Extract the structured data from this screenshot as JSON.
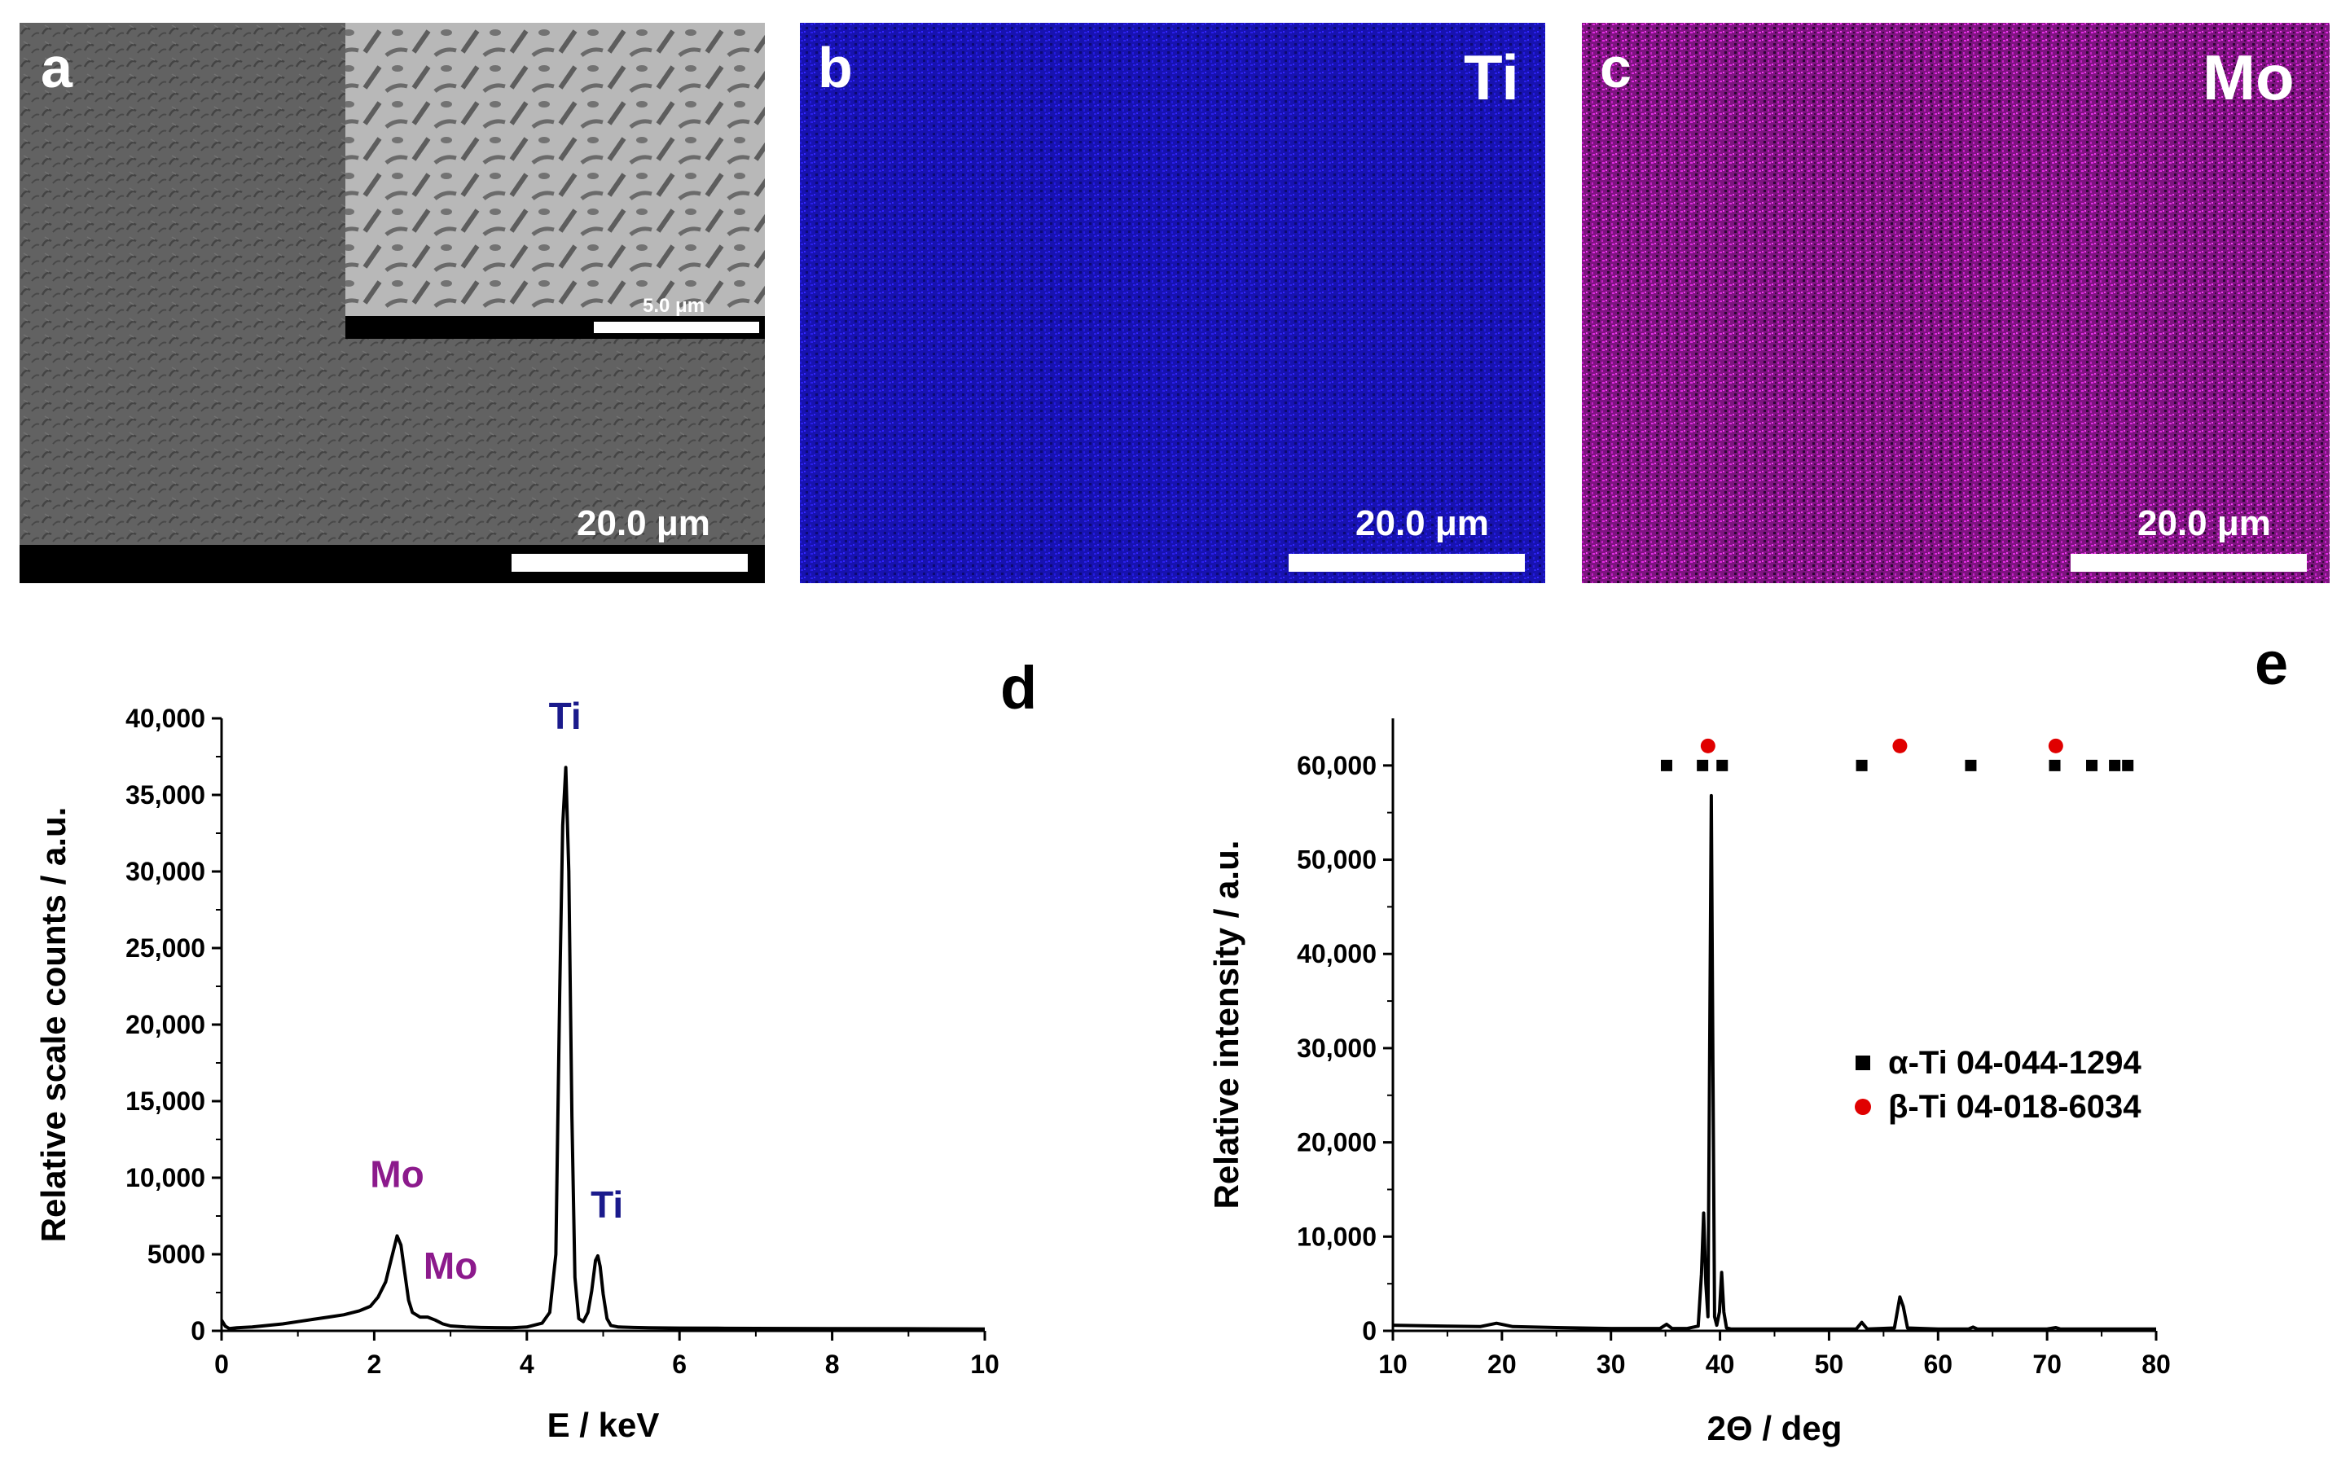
{
  "panel_a": {
    "letter": "a",
    "scale_bar_label": "20.0 μm",
    "inset_scale_bar_label": "5.0 μm"
  },
  "panel_b": {
    "letter": "b",
    "element": "Ti",
    "scale_bar_label": "20.0 μm",
    "map_color": "#1f12d6"
  },
  "panel_c": {
    "letter": "c",
    "element": "Mo",
    "scale_bar_label": "20.0 μm",
    "map_color": "#d21bd3"
  },
  "chart_data": [
    {
      "panel": "d",
      "type": "line",
      "xlabel": "E / keV",
      "ylabel": "Relative scale counts / a.u.",
      "xlim": [
        0,
        10
      ],
      "ylim": [
        0,
        40000
      ],
      "xticks": [
        0,
        2,
        4,
        6,
        8,
        10
      ],
      "yticks": [
        0,
        5000,
        10000,
        15000,
        20000,
        25000,
        30000,
        35000,
        40000
      ],
      "ytick_labels": [
        "0",
        "5000",
        "10,000",
        "15,000",
        "20,000",
        "25,000",
        "30,000",
        "35,000",
        "40,000"
      ],
      "series": [
        {
          "color": "#000000",
          "x": [
            0.0,
            0.05,
            0.1,
            0.2,
            0.4,
            0.6,
            0.8,
            1.0,
            1.2,
            1.4,
            1.6,
            1.8,
            1.95,
            2.05,
            2.15,
            2.2,
            2.25,
            2.3,
            2.35,
            2.4,
            2.45,
            2.5,
            2.6,
            2.7,
            2.8,
            2.9,
            3.0,
            3.2,
            3.4,
            3.6,
            3.8,
            4.0,
            4.2,
            4.3,
            4.38,
            4.43,
            4.47,
            4.51,
            4.55,
            4.59,
            4.63,
            4.68,
            4.74,
            4.8,
            4.85,
            4.9,
            4.93,
            4.96,
            5.0,
            5.05,
            5.1,
            5.2,
            5.4,
            5.6,
            6.0,
            6.5,
            7.0,
            8.0,
            9.0,
            10.0
          ],
          "y": [
            700,
            300,
            150,
            200,
            250,
            350,
            450,
            600,
            750,
            900,
            1050,
            1300,
            1600,
            2200,
            3200,
            4200,
            5200,
            6200,
            5600,
            3800,
            2000,
            1200,
            900,
            900,
            700,
            450,
            320,
            250,
            220,
            210,
            200,
            250,
            500,
            1200,
            5000,
            22000,
            33000,
            36800,
            30000,
            14000,
            3500,
            800,
            600,
            1200,
            2600,
            4600,
            4900,
            4200,
            2400,
            800,
            350,
            250,
            220,
            200,
            180,
            170,
            160,
            150,
            140,
            120
          ]
        }
      ],
      "annotations": [
        {
          "text": "Mo",
          "x": 2.3,
          "y": 9400,
          "color": "#8c1a8c"
        },
        {
          "text": "Mo",
          "x": 3.0,
          "y": 3400,
          "color": "#8c1a8c"
        },
        {
          "text": "Ti",
          "x": 4.5,
          "y": 39300,
          "color": "#1a1a8c"
        },
        {
          "text": "Ti",
          "x": 5.05,
          "y": 7400,
          "color": "#1a1a8c"
        }
      ]
    },
    {
      "panel": "e",
      "type": "line",
      "xlabel": "2Θ / deg",
      "ylabel": "Relative intensity / a.u.",
      "xlim": [
        10,
        80
      ],
      "ylim": [
        0,
        65000
      ],
      "xticks": [
        10,
        20,
        30,
        40,
        50,
        60,
        70,
        80
      ],
      "yticks": [
        0,
        10000,
        20000,
        30000,
        40000,
        50000,
        60000
      ],
      "ytick_labels": [
        "0",
        "10,000",
        "20,000",
        "30,000",
        "40,000",
        "50,000",
        "60,000"
      ],
      "series": [
        {
          "color": "#000000",
          "x": [
            10,
            15,
            18,
            19.5,
            21,
            25,
            30,
            34.5,
            35.1,
            35.6,
            37,
            38.0,
            38.3,
            38.5,
            38.7,
            38.9,
            39.05,
            39.2,
            39.35,
            39.5,
            39.7,
            39.95,
            40.15,
            40.35,
            40.6,
            41,
            45,
            52.5,
            53.0,
            53.5,
            56.0,
            56.5,
            56.8,
            57.2,
            60,
            62.8,
            63.2,
            63.6,
            70,
            70.8,
            71.2,
            76,
            80
          ],
          "y": [
            600,
            500,
            450,
            800,
            450,
            350,
            250,
            250,
            700,
            250,
            250,
            500,
            6000,
            12500,
            5000,
            1500,
            30000,
            56800,
            28000,
            1500,
            600,
            2000,
            6200,
            2000,
            300,
            200,
            200,
            200,
            900,
            200,
            300,
            3600,
            2600,
            300,
            200,
            200,
            400,
            200,
            200,
            350,
            200,
            200,
            200
          ]
        }
      ],
      "reference_markers": {
        "alpha_Ti": {
          "marker": "square",
          "color": "#000000",
          "positions": [
            35.1,
            38.4,
            40.2,
            53.0,
            63.0,
            70.7,
            74.1,
            76.2,
            77.4
          ]
        },
        "beta_Ti": {
          "marker": "circle",
          "color": "#e00000",
          "positions": [
            38.9,
            56.5,
            70.8
          ]
        }
      },
      "legend": {
        "placement": "right-middle",
        "entries": [
          {
            "label": "α-Ti 04-044-1294",
            "marker": "square",
            "color": "#000000"
          },
          {
            "label": "β-Ti 04-018-6034",
            "marker": "circle",
            "color": "#e00000"
          }
        ]
      }
    }
  ],
  "panel_d_letter": "d",
  "panel_e_letter": "e"
}
